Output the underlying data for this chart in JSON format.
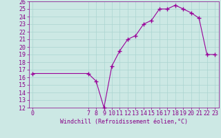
{
  "xlabel": "Windchill (Refroidissement éolien,°C)",
  "bg_color": "#cce8e4",
  "grid_color": "#aad4d0",
  "line_color": "#990099",
  "marker": "+",
  "x_data": [
    0,
    7,
    8,
    9,
    10,
    11,
    12,
    13,
    14,
    15,
    16,
    17,
    18,
    19,
    20,
    21,
    22,
    23
  ],
  "y_data": [
    16.5,
    16.5,
    15.5,
    12.0,
    17.5,
    19.5,
    21.0,
    21.5,
    23.0,
    23.5,
    25.0,
    25.0,
    25.5,
    25.0,
    24.5,
    23.8,
    19.0,
    19.0
  ],
  "xlim": [
    -0.5,
    23.5
  ],
  "ylim": [
    12,
    26
  ],
  "yticks": [
    12,
    13,
    14,
    15,
    16,
    17,
    18,
    19,
    20,
    21,
    22,
    23,
    24,
    25,
    26
  ],
  "xticks": [
    0,
    7,
    8,
    9,
    10,
    11,
    12,
    13,
    14,
    15,
    16,
    17,
    18,
    19,
    20,
    21,
    22,
    23
  ],
  "xtick_labels": [
    "0",
    "7",
    "8",
    "9",
    "10",
    "11",
    "12",
    "13",
    "14",
    "15",
    "16",
    "17",
    "18",
    "19",
    "20",
    "21",
    "22",
    "23"
  ],
  "font_color": "#880088",
  "font_size": 6,
  "marker_size": 4,
  "linewidth": 0.8
}
